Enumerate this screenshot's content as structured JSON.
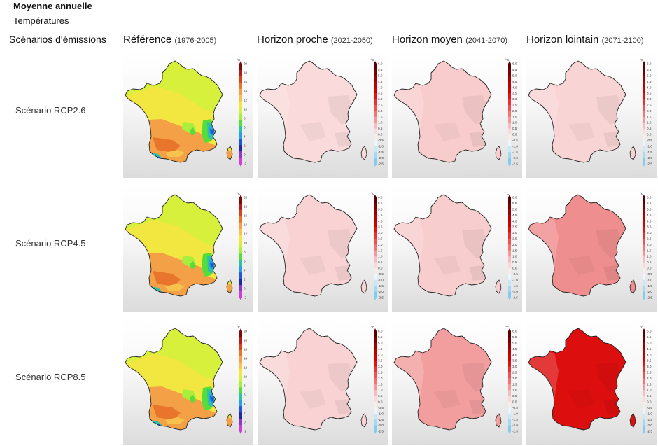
{
  "section": {
    "title": "Moyenne annuelle",
    "variable": "Températures"
  },
  "header": {
    "scenarios_label": "Scénarios d'émissions",
    "columns": [
      {
        "name": "Référence",
        "range": "(1976-2005)"
      },
      {
        "name": "Horizon proche",
        "range": "(2021-2050)"
      },
      {
        "name": "Horizon moyen",
        "range": "(2041-2070)"
      },
      {
        "name": "Horizon lointain",
        "range": "(2071-2100)"
      }
    ]
  },
  "rows": [
    {
      "label": "Scénario RCP2.6",
      "maps": [
        {
          "kind": "reference"
        },
        {
          "kind": "anomaly",
          "fill": "#fadada"
        },
        {
          "kind": "anomaly",
          "fill": "#f8cccc"
        },
        {
          "kind": "anomaly",
          "fill": "#f9d4d4"
        }
      ]
    },
    {
      "label": "Scénario RCP4.5",
      "maps": [
        {
          "kind": "reference"
        },
        {
          "kind": "anomaly",
          "fill": "#f9d3d3"
        },
        {
          "kind": "anomaly",
          "fill": "#f8cdcd"
        },
        {
          "kind": "anomaly",
          "fill": "#ef8e8e"
        }
      ]
    },
    {
      "label": "Scénario RCP8.5",
      "maps": [
        {
          "kind": "reference"
        },
        {
          "kind": "anomaly",
          "fill": "#f9d3d3"
        },
        {
          "kind": "anomaly",
          "fill": "#f29e9e"
        },
        {
          "kind": "anomaly",
          "fill": "#dd0e0e"
        }
      ]
    }
  ],
  "legends": {
    "reference": {
      "unit": "°C",
      "ticks": [
        "20",
        "18",
        "16",
        "14",
        "12",
        "10",
        "8",
        "6",
        "4",
        "2",
        "0",
        "-2"
      ]
    },
    "anomaly": {
      "unit": "°C",
      "ticks": [
        "6.0",
        "5.5",
        "5.0",
        "4.5",
        "4.0",
        "3.5",
        "3.0",
        "2.5",
        "2.0",
        "1.5",
        "1.0",
        "0.5",
        "0.0",
        "-0.5",
        "-1.0",
        "-1.5",
        "-2.0",
        "-2.5"
      ]
    }
  },
  "colors": {
    "reference_scale": [
      "#7b0a0a",
      "#b31d1d",
      "#d8431e",
      "#e8752b",
      "#f3a047",
      "#f7c24d",
      "#f5e642",
      "#d7f03b",
      "#a9ee3c",
      "#55dd3a",
      "#2bc2a8",
      "#2a9ee8",
      "#1f57d6",
      "#1f2aa0",
      "#8e38c8",
      "#d03cd8"
    ],
    "anomaly_scale": [
      "#5a0000",
      "#7d0000",
      "#9c0000",
      "#bb0000",
      "#d40000",
      "#e31111",
      "#ec3030",
      "#f25151",
      "#f57373",
      "#f79797",
      "#f9bcbc",
      "#fbd9d9",
      "#fbeaea",
      "#eaf6fc",
      "#c6e8f8",
      "#a3d9f4",
      "#84cbf0"
    ]
  }
}
